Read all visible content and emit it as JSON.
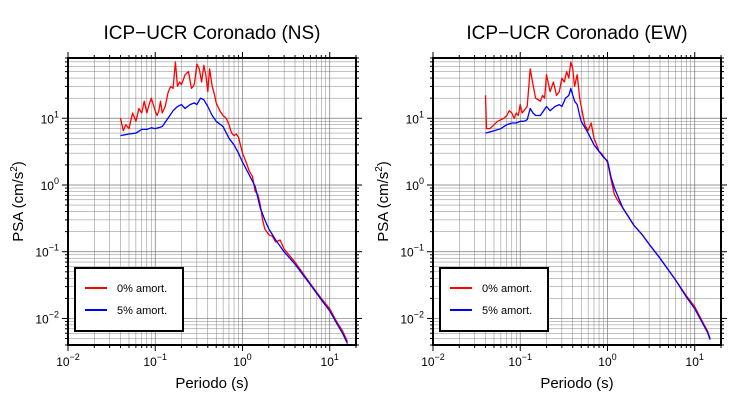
{
  "chart_data": [
    {
      "type": "line",
      "title": "ICP−UCR Coronado (NS)",
      "xlabel": "Periodo (s)",
      "ylabel_main": "PSA (cm/s",
      "ylabel_sup": "2",
      "ylabel_tail": ")",
      "xscale": "log",
      "yscale": "log",
      "xlim": [
        0.01,
        20
      ],
      "ylim": [
        0.004,
        80
      ],
      "grid": true,
      "legend_position": "bottom-left",
      "x_ticks": [
        {
          "value": 0.01,
          "base": "10",
          "exp": "−2"
        },
        {
          "value": 0.1,
          "base": "10",
          "exp": "−1"
        },
        {
          "value": 1,
          "base": "10",
          "exp": "0"
        },
        {
          "value": 10,
          "base": "10",
          "exp": "1"
        }
      ],
      "y_ticks": [
        {
          "value": 0.01,
          "base": "10",
          "exp": "−2"
        },
        {
          "value": 0.1,
          "base": "10",
          "exp": "−1"
        },
        {
          "value": 1,
          "base": "10",
          "exp": "0"
        },
        {
          "value": 10,
          "base": "10",
          "exp": "1"
        }
      ],
      "series": [
        {
          "name": "0% amort.",
          "color": "#ff0000",
          "points": [
            [
              0.04,
              10
            ],
            [
              0.043,
              6.5
            ],
            [
              0.046,
              8
            ],
            [
              0.05,
              7
            ],
            [
              0.055,
              12
            ],
            [
              0.06,
              9
            ],
            [
              0.065,
              14
            ],
            [
              0.07,
              12
            ],
            [
              0.075,
              18
            ],
            [
              0.08,
              12
            ],
            [
              0.085,
              16
            ],
            [
              0.09,
              20
            ],
            [
              0.1,
              13
            ],
            [
              0.105,
              11
            ],
            [
              0.11,
              13
            ],
            [
              0.115,
              18
            ],
            [
              0.12,
              12
            ],
            [
              0.13,
              15
            ],
            [
              0.14,
              24
            ],
            [
              0.15,
              30
            ],
            [
              0.16,
              28
            ],
            [
              0.17,
              70
            ],
            [
              0.18,
              30
            ],
            [
              0.19,
              35
            ],
            [
              0.2,
              32
            ],
            [
              0.22,
              45
            ],
            [
              0.24,
              50
            ],
            [
              0.26,
              28
            ],
            [
              0.28,
              32
            ],
            [
              0.3,
              65
            ],
            [
              0.32,
              55
            ],
            [
              0.34,
              35
            ],
            [
              0.36,
              62
            ],
            [
              0.38,
              45
            ],
            [
              0.4,
              25
            ],
            [
              0.42,
              55
            ],
            [
              0.45,
              30
            ],
            [
              0.48,
              22
            ],
            [
              0.5,
              17
            ],
            [
              0.55,
              13
            ],
            [
              0.6,
              11
            ],
            [
              0.65,
              10
            ],
            [
              0.7,
              8
            ],
            [
              0.75,
              6
            ],
            [
              0.8,
              5.5
            ],
            [
              0.85,
              5.8
            ],
            [
              0.9,
              5.2
            ],
            [
              1.0,
              3.0
            ],
            [
              1.1,
              2.2
            ],
            [
              1.2,
              1.6
            ],
            [
              1.3,
              1.35
            ],
            [
              1.4,
              0.8
            ],
            [
              1.5,
              0.72
            ],
            [
              1.6,
              0.5
            ],
            [
              1.7,
              0.3
            ],
            [
              1.8,
              0.22
            ],
            [
              2.0,
              0.18
            ],
            [
              2.2,
              0.17
            ],
            [
              2.4,
              0.14
            ],
            [
              2.7,
              0.15
            ],
            [
              3.0,
              0.11
            ],
            [
              4.0,
              0.07
            ],
            [
              6.0,
              0.033
            ],
            [
              8.0,
              0.02
            ],
            [
              10.0,
              0.014
            ],
            [
              12.0,
              0.009
            ],
            [
              14.0,
              0.0065
            ],
            [
              16.0,
              0.0045
            ]
          ]
        },
        {
          "name": "5% amort.",
          "color": "#0000ff",
          "points": [
            [
              0.04,
              5.5
            ],
            [
              0.05,
              5.8
            ],
            [
              0.06,
              6
            ],
            [
              0.07,
              6.8
            ],
            [
              0.08,
              6.8
            ],
            [
              0.09,
              7.2
            ],
            [
              0.1,
              7
            ],
            [
              0.12,
              7.5
            ],
            [
              0.14,
              10
            ],
            [
              0.16,
              13
            ],
            [
              0.18,
              15
            ],
            [
              0.2,
              16
            ],
            [
              0.22,
              14
            ],
            [
              0.25,
              16
            ],
            [
              0.28,
              17
            ],
            [
              0.3,
              16
            ],
            [
              0.33,
              20
            ],
            [
              0.36,
              19
            ],
            [
              0.4,
              15
            ],
            [
              0.45,
              11
            ],
            [
              0.5,
              9
            ],
            [
              0.6,
              7.5
            ],
            [
              0.7,
              5
            ],
            [
              0.8,
              4
            ],
            [
              0.9,
              3
            ],
            [
              1.0,
              2.2
            ],
            [
              1.2,
              1.4
            ],
            [
              1.4,
              0.95
            ],
            [
              1.6,
              0.45
            ],
            [
              1.8,
              0.3
            ],
            [
              2.0,
              0.22
            ],
            [
              2.4,
              0.15
            ],
            [
              3.0,
              0.1
            ],
            [
              4.0,
              0.065
            ],
            [
              6.0,
              0.032
            ],
            [
              8.0,
              0.019
            ],
            [
              10.0,
              0.013
            ],
            [
              12.0,
              0.0085
            ],
            [
              14.0,
              0.006
            ],
            [
              16.0,
              0.0042
            ]
          ]
        }
      ]
    },
    {
      "type": "line",
      "title": "ICP−UCR Coronado (EW)",
      "xlabel": "Periodo (s)",
      "ylabel_main": "PSA (cm/s",
      "ylabel_sup": "2",
      "ylabel_tail": ")",
      "xscale": "log",
      "yscale": "log",
      "xlim": [
        0.01,
        20
      ],
      "ylim": [
        0.004,
        80
      ],
      "grid": true,
      "legend_position": "bottom-left",
      "x_ticks": [
        {
          "value": 0.01,
          "base": "10",
          "exp": "−2"
        },
        {
          "value": 0.1,
          "base": "10",
          "exp": "−1"
        },
        {
          "value": 1,
          "base": "10",
          "exp": "0"
        },
        {
          "value": 10,
          "base": "10",
          "exp": "1"
        }
      ],
      "y_ticks": [
        {
          "value": 0.01,
          "base": "10",
          "exp": "−2"
        },
        {
          "value": 0.1,
          "base": "10",
          "exp": "−1"
        },
        {
          "value": 1,
          "base": "10",
          "exp": "0"
        },
        {
          "value": 10,
          "base": "10",
          "exp": "1"
        }
      ],
      "series": [
        {
          "name": "0% amort.",
          "color": "#ff0000",
          "points": [
            [
              0.04,
              22
            ],
            [
              0.041,
              7
            ],
            [
              0.045,
              7
            ],
            [
              0.05,
              8
            ],
            [
              0.055,
              9
            ],
            [
              0.06,
              9.5
            ],
            [
              0.065,
              10
            ],
            [
              0.07,
              11
            ],
            [
              0.075,
              13
            ],
            [
              0.08,
              12
            ],
            [
              0.085,
              10
            ],
            [
              0.09,
              12
            ],
            [
              0.095,
              11
            ],
            [
              0.1,
              16
            ],
            [
              0.105,
              12
            ],
            [
              0.11,
              13
            ],
            [
              0.12,
              15
            ],
            [
              0.13,
              55
            ],
            [
              0.14,
              32
            ],
            [
              0.15,
              20
            ],
            [
              0.16,
              19
            ],
            [
              0.17,
              18
            ],
            [
              0.18,
              22
            ],
            [
              0.19,
              20
            ],
            [
              0.2,
              45
            ],
            [
              0.22,
              25
            ],
            [
              0.24,
              35
            ],
            [
              0.26,
              22
            ],
            [
              0.28,
              25
            ],
            [
              0.3,
              40
            ],
            [
              0.32,
              35
            ],
            [
              0.34,
              50
            ],
            [
              0.36,
              40
            ],
            [
              0.38,
              70
            ],
            [
              0.4,
              55
            ],
            [
              0.42,
              30
            ],
            [
              0.45,
              45
            ],
            [
              0.48,
              20
            ],
            [
              0.5,
              15
            ],
            [
              0.55,
              8
            ],
            [
              0.6,
              6.5
            ],
            [
              0.65,
              8.5
            ],
            [
              0.7,
              5
            ],
            [
              0.75,
              4
            ],
            [
              0.8,
              3.2
            ],
            [
              0.85,
              3.0
            ],
            [
              0.9,
              2.7
            ],
            [
              1.0,
              2.2
            ],
            [
              1.1,
              1.2
            ],
            [
              1.2,
              0.72
            ],
            [
              1.3,
              0.6
            ],
            [
              1.5,
              0.45
            ],
            [
              1.7,
              0.35
            ],
            [
              2.0,
              0.25
            ],
            [
              2.5,
              0.18
            ],
            [
              3.0,
              0.13
            ],
            [
              4.0,
              0.08
            ],
            [
              6.0,
              0.038
            ],
            [
              8.0,
              0.022
            ],
            [
              10.0,
              0.015
            ],
            [
              12.0,
              0.0095
            ],
            [
              14.0,
              0.0065
            ],
            [
              15.0,
              0.005
            ]
          ]
        },
        {
          "name": "5% amort.",
          "color": "#0000ff",
          "points": [
            [
              0.04,
              6
            ],
            [
              0.05,
              6.5
            ],
            [
              0.06,
              7
            ],
            [
              0.07,
              8
            ],
            [
              0.08,
              8.5
            ],
            [
              0.09,
              8.5
            ],
            [
              0.1,
              9
            ],
            [
              0.11,
              9
            ],
            [
              0.12,
              9.5
            ],
            [
              0.13,
              14
            ],
            [
              0.14,
              12
            ],
            [
              0.15,
              11
            ],
            [
              0.17,
              11
            ],
            [
              0.2,
              15
            ],
            [
              0.22,
              13
            ],
            [
              0.25,
              15
            ],
            [
              0.28,
              16
            ],
            [
              0.3,
              15
            ],
            [
              0.33,
              20
            ],
            [
              0.36,
              22
            ],
            [
              0.38,
              28
            ],
            [
              0.4,
              22
            ],
            [
              0.42,
              18
            ],
            [
              0.45,
              16
            ],
            [
              0.48,
              11
            ],
            [
              0.5,
              9
            ],
            [
              0.6,
              6
            ],
            [
              0.7,
              4
            ],
            [
              0.8,
              3.2
            ],
            [
              0.9,
              2.6
            ],
            [
              1.0,
              2.3
            ],
            [
              1.1,
              1.3
            ],
            [
              1.2,
              0.9
            ],
            [
              1.5,
              0.45
            ],
            [
              1.7,
              0.35
            ],
            [
              2.0,
              0.25
            ],
            [
              2.5,
              0.18
            ],
            [
              3.0,
              0.13
            ],
            [
              4.0,
              0.08
            ],
            [
              6.0,
              0.038
            ],
            [
              8.0,
              0.021
            ],
            [
              10.0,
              0.014
            ],
            [
              12.0,
              0.009
            ],
            [
              14.0,
              0.0062
            ],
            [
              15.0,
              0.0048
            ]
          ]
        }
      ]
    }
  ]
}
